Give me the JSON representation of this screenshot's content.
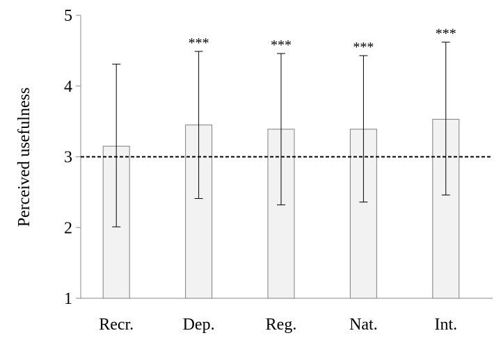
{
  "chart_data": {
    "type": "bar",
    "title": "",
    "xlabel": "",
    "ylabel": "Perceived usefulness",
    "ylim": [
      1,
      5
    ],
    "yticks": [
      1,
      2,
      3,
      4,
      5
    ],
    "ytick_labels": [
      "1",
      "2",
      "3",
      "4",
      "5"
    ],
    "grid": false,
    "categories": [
      "Recr.",
      "Dep.",
      "Reg.",
      "Nat.",
      "Int."
    ],
    "values": [
      3.15,
      3.45,
      3.39,
      3.39,
      3.53
    ],
    "error_low": [
      2.01,
      2.41,
      2.32,
      2.36,
      2.46
    ],
    "error_high": [
      4.31,
      4.49,
      4.46,
      4.43,
      4.62
    ],
    "significance": [
      "",
      "***",
      "***",
      "***",
      "***"
    ],
    "reference_line": {
      "y": 3,
      "style": "dashed"
    },
    "colors": {
      "bar_fill": "#f2f2f2",
      "bar_stroke": "#7f7f7f",
      "axis": "#888888",
      "error": "#000000",
      "reference": "#000000"
    }
  }
}
